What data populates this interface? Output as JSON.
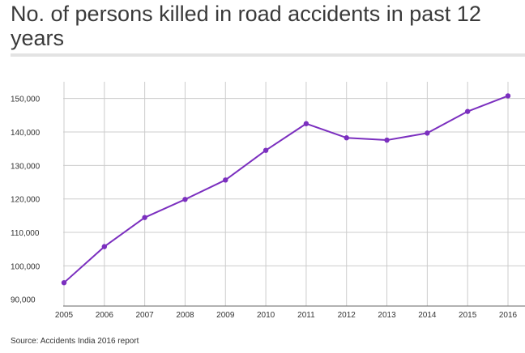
{
  "title": "No. of persons killed in road accidents in past 12 years",
  "source": "Source: Accidents India 2016 report",
  "colors": {
    "line": "#7b2fbf",
    "grid": "#cccccc",
    "axis": "#666666",
    "text": "#333333"
  },
  "chart_data": {
    "type": "line",
    "title": "No. of persons killed in road accidents in past 12 years",
    "xlabel": "",
    "ylabel": "",
    "categories": [
      "2005",
      "2006",
      "2007",
      "2008",
      "2009",
      "2010",
      "2011",
      "2012",
      "2013",
      "2014",
      "2015",
      "2016"
    ],
    "values": [
      94968,
      105749,
      114444,
      119860,
      125660,
      134513,
      142485,
      138258,
      137572,
      139671,
      146133,
      150785
    ],
    "ylim": [
      90000,
      150000
    ],
    "yticks": [
      90000,
      100000,
      110000,
      120000,
      130000,
      140000,
      150000
    ],
    "ytick_labels": [
      "90,000",
      "100,000",
      "110,000",
      "120,000",
      "130,000",
      "140,000",
      "150,000"
    ],
    "grid": true,
    "legend": "none"
  }
}
